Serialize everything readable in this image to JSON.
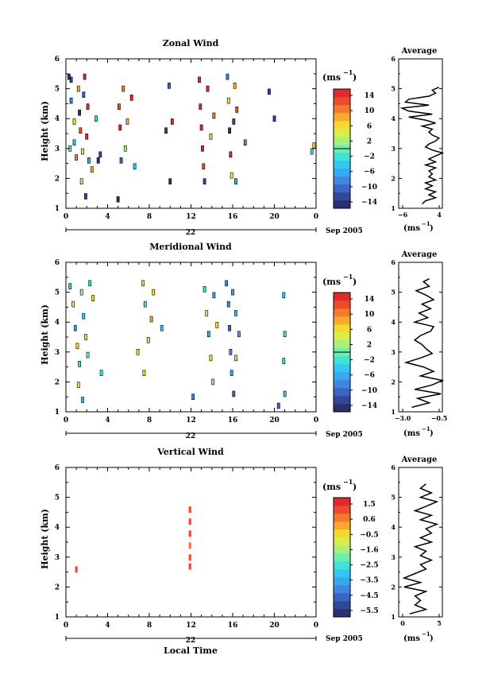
{
  "panels": [
    {
      "title": "Zonal Wind",
      "ylabel": "Height (km)",
      "cb_unit": "(ms",
      "cb_exp": "−1",
      "cb_labels": [
        "14",
        "10",
        "6",
        "2",
        "−2",
        "−6",
        "−10",
        "−14"
      ],
      "avg_title": "Average",
      "avg_xticks": [
        "−6",
        "4"
      ],
      "avg_unit": "(ms",
      "avg_exp": "−1",
      "date_label": "Sep 2005",
      "day_label": "22"
    },
    {
      "title": "Meridional Wind",
      "ylabel": "Height (km)",
      "cb_unit": "(ms",
      "cb_exp": "−1",
      "cb_labels": [
        "14",
        "10",
        "6",
        "2",
        "−2",
        "−6",
        "−10",
        "−14"
      ],
      "avg_title": "Average",
      "avg_xticks": [
        "−3.0",
        "−0.5"
      ],
      "avg_unit": "(ms",
      "avg_exp": "−1",
      "date_label": "Sep 2005",
      "day_label": "22"
    },
    {
      "title": "Vertical Wind",
      "ylabel": "Height (km)",
      "cb_unit": "(ms",
      "cb_exp": "−1",
      "cb_labels": [
        "1.5",
        "0.6",
        "−0.5",
        "−1.6",
        "−2.5",
        "−3.5",
        "−4.5",
        "−5.5"
      ],
      "avg_title": "Average",
      "avg_xticks": [
        "0",
        "5"
      ],
      "avg_unit": "(ms",
      "avg_exp": "−1",
      "date_label": "Sep 2005",
      "day_label": "22",
      "xlabel": "Local Time"
    }
  ],
  "colors": {
    "colormap": [
      "#2b2f6e",
      "#30489a",
      "#3a65c4",
      "#3f86e0",
      "#38a8ef",
      "#34c8f0",
      "#3fe2d8",
      "#6cefad",
      "#a8f07a",
      "#d8ee4c",
      "#f6d92e",
      "#f9aa2c",
      "#f57a2c",
      "#ee4a2e",
      "#e02b2b"
    ]
  },
  "chart_data": [
    {
      "type": "heatmap",
      "title": "Zonal Wind",
      "ylabel": "Height (km)",
      "x_ticks": [
        "0",
        "4",
        "8",
        "12",
        "16",
        "20",
        "0"
      ],
      "y_ticks": [
        "1",
        "2",
        "3",
        "4",
        "5",
        "6"
      ],
      "xlim": [
        0,
        24
      ],
      "ylim": [
        1,
        6
      ],
      "colorbar_range": [
        -16,
        16
      ],
      "cells": [
        [
          0.5,
          5.3,
          -12
        ],
        [
          0.5,
          4.6,
          -8
        ],
        [
          0.8,
          3.9,
          6
        ],
        [
          0.8,
          3.2,
          -4
        ],
        [
          1.0,
          2.7,
          10
        ],
        [
          1.2,
          5.0,
          8
        ],
        [
          1.3,
          4.2,
          -14
        ],
        [
          1.4,
          3.6,
          12
        ],
        [
          1.6,
          2.9,
          4
        ],
        [
          1.7,
          4.8,
          -10
        ],
        [
          1.8,
          5.4,
          14
        ],
        [
          2.0,
          3.4,
          14
        ],
        [
          2.1,
          4.4,
          16
        ],
        [
          2.2,
          2.6,
          -6
        ],
        [
          1.5,
          1.9,
          2
        ],
        [
          1.9,
          1.4,
          -12
        ],
        [
          2.5,
          2.3,
          8
        ],
        [
          2.9,
          4.0,
          -3
        ],
        [
          3.1,
          2.6,
          -14
        ],
        [
          3.3,
          2.8,
          -12
        ],
        [
          0.3,
          5.4,
          -14
        ],
        [
          0.4,
          3.0,
          0
        ],
        [
          5.1,
          4.4,
          12
        ],
        [
          5.2,
          3.7,
          14
        ],
        [
          5.3,
          2.6,
          -10
        ],
        [
          5.5,
          5.0,
          10
        ],
        [
          5.7,
          3.0,
          2
        ],
        [
          5.9,
          3.9,
          8
        ],
        [
          6.3,
          4.7,
          16
        ],
        [
          6.6,
          2.4,
          -4
        ],
        [
          5.0,
          1.3,
          -14
        ],
        [
          9.6,
          3.6,
          -12
        ],
        [
          9.9,
          5.1,
          -10
        ],
        [
          10.0,
          1.9,
          -14
        ],
        [
          10.2,
          3.9,
          14
        ],
        [
          12.8,
          5.3,
          16
        ],
        [
          12.9,
          4.4,
          16
        ],
        [
          13.0,
          3.7,
          14
        ],
        [
          13.1,
          3.0,
          16
        ],
        [
          13.2,
          2.4,
          12
        ],
        [
          13.3,
          1.9,
          -12
        ],
        [
          13.6,
          5.0,
          16
        ],
        [
          13.9,
          3.4,
          2
        ],
        [
          14.2,
          4.1,
          10
        ],
        [
          15.5,
          5.4,
          -8
        ],
        [
          15.6,
          4.6,
          6
        ],
        [
          15.7,
          3.6,
          -14
        ],
        [
          15.8,
          2.8,
          14
        ],
        [
          15.9,
          2.1,
          4
        ],
        [
          16.1,
          3.9,
          -12
        ],
        [
          16.2,
          5.1,
          8
        ],
        [
          16.3,
          1.9,
          -6
        ],
        [
          16.4,
          4.3,
          12
        ],
        [
          17.2,
          3.2,
          -8
        ],
        [
          19.5,
          4.9,
          -12
        ],
        [
          20.0,
          4.0,
          -12
        ],
        [
          23.6,
          2.9,
          -2
        ],
        [
          23.8,
          3.1,
          6
        ]
      ]
    },
    {
      "type": "heatmap",
      "title": "Meridional Wind",
      "ylabel": "Height (km)",
      "x_ticks": [
        "0",
        "4",
        "8",
        "12",
        "16",
        "20",
        "0"
      ],
      "y_ticks": [
        "1",
        "2",
        "3",
        "4",
        "5",
        "6"
      ],
      "xlim": [
        0,
        24
      ],
      "ylim": [
        1,
        6
      ],
      "colorbar_range": [
        -16,
        16
      ],
      "cells": [
        [
          0.4,
          5.2,
          -4
        ],
        [
          0.7,
          4.6,
          4
        ],
        [
          0.9,
          3.8,
          -6
        ],
        [
          1.1,
          3.2,
          6
        ],
        [
          1.3,
          2.6,
          -2
        ],
        [
          1.5,
          5.0,
          2
        ],
        [
          1.7,
          4.2,
          -4
        ],
        [
          1.9,
          3.5,
          4
        ],
        [
          2.1,
          2.9,
          0
        ],
        [
          2.3,
          5.3,
          -2
        ],
        [
          1.2,
          1.9,
          6
        ],
        [
          1.6,
          1.4,
          -4
        ],
        [
          2.6,
          4.8,
          6
        ],
        [
          3.4,
          2.3,
          -2
        ],
        [
          7.4,
          5.3,
          4
        ],
        [
          7.6,
          4.6,
          -2
        ],
        [
          7.9,
          3.4,
          2
        ],
        [
          8.2,
          4.1,
          8
        ],
        [
          8.4,
          5.0,
          6
        ],
        [
          7.5,
          2.3,
          6
        ],
        [
          9.2,
          3.8,
          -4
        ],
        [
          6.9,
          3.0,
          6
        ],
        [
          13.3,
          5.1,
          -2
        ],
        [
          13.5,
          4.3,
          4
        ],
        [
          13.7,
          3.6,
          -6
        ],
        [
          13.9,
          2.8,
          6
        ],
        [
          14.1,
          2.0,
          2
        ],
        [
          12.2,
          1.5,
          -8
        ],
        [
          14.2,
          4.9,
          -6
        ],
        [
          14.5,
          3.9,
          6
        ],
        [
          15.4,
          5.3,
          -8
        ],
        [
          15.6,
          4.6,
          -8
        ],
        [
          15.7,
          3.8,
          -10
        ],
        [
          15.8,
          3.0,
          -8
        ],
        [
          15.9,
          2.3,
          -6
        ],
        [
          16.1,
          1.6,
          -10
        ],
        [
          16.0,
          5.0,
          -6
        ],
        [
          16.3,
          4.3,
          -4
        ],
        [
          16.3,
          2.8,
          2
        ],
        [
          16.6,
          3.6,
          -6
        ],
        [
          20.9,
          4.9,
          -4
        ],
        [
          21.0,
          3.6,
          -2
        ],
        [
          20.9,
          2.7,
          -2
        ],
        [
          21.0,
          1.6,
          -4
        ],
        [
          20.4,
          1.2,
          -10
        ]
      ]
    },
    {
      "type": "heatmap",
      "title": "Vertical Wind",
      "xlabel": "Local Time",
      "ylabel": "Height (km)",
      "x_ticks": [
        "0",
        "4",
        "8",
        "12",
        "16",
        "20",
        "0"
      ],
      "y_ticks": [
        "1",
        "2",
        "3",
        "4",
        "5",
        "6"
      ],
      "xlim": [
        0,
        24
      ],
      "ylim": [
        1,
        6
      ],
      "colorbar_range": [
        -6,
        2
      ],
      "cells": [
        [
          1.0,
          2.6,
          1.2
        ],
        [
          11.9,
          4.6,
          1.4
        ],
        [
          11.9,
          4.2,
          1.0
        ],
        [
          11.9,
          3.8,
          1.2
        ],
        [
          11.9,
          3.4,
          0.8
        ],
        [
          11.9,
          3.0,
          1.0
        ],
        [
          11.9,
          2.7,
          1.4
        ]
      ]
    },
    {
      "type": "line",
      "title": "Average",
      "xlabel": "(ms-1)",
      "xlim": [
        -8,
        5
      ],
      "ylim": [
        1,
        6
      ],
      "x": [
        -1,
        0,
        3,
        1,
        3,
        0,
        2,
        0,
        3,
        1,
        2,
        1,
        3,
        0,
        3,
        1,
        3,
        5,
        2,
        0,
        1,
        3,
        4,
        2,
        1,
        2,
        -1,
        3,
        0,
        -5,
        2,
        -5,
        -7,
        1,
        -6,
        -5,
        1,
        3,
        2,
        4
      ],
      "y": [
        1.15,
        1.25,
        1.35,
        1.45,
        1.55,
        1.65,
        1.75,
        1.85,
        1.95,
        2.05,
        2.15,
        2.25,
        2.35,
        2.45,
        2.55,
        2.65,
        2.75,
        2.85,
        2.95,
        3.05,
        3.15,
        3.25,
        3.35,
        3.45,
        3.55,
        3.65,
        3.75,
        3.85,
        3.95,
        4.05,
        4.15,
        4.25,
        4.35,
        4.45,
        4.55,
        4.65,
        4.75,
        4.85,
        4.95,
        5.05
      ]
    },
    {
      "type": "line",
      "title": "Average",
      "xlabel": "(ms-1)",
      "xlim": [
        -3.5,
        -0.5
      ],
      "ylim": [
        1,
        6
      ],
      "x": [
        -2.6,
        -1.4,
        -2.2,
        -0.6,
        -2.4,
        -1.2,
        -0.5,
        -2.0,
        -1.1,
        -1.8,
        -3.0,
        -2.0,
        -1.2,
        -1.6,
        -1.9,
        -2.4,
        -2.0,
        -1.3,
        -1.1,
        -2.4,
        -1.5,
        -2.1,
        -1.3,
        -1.9,
        -1.1,
        -1.6,
        -2.3,
        -1.4,
        -1.8,
        -1.4
      ],
      "y": [
        1.15,
        1.3,
        1.45,
        1.6,
        1.75,
        1.9,
        2.05,
        2.2,
        2.35,
        2.5,
        2.65,
        2.8,
        2.95,
        3.1,
        3.25,
        3.4,
        3.55,
        3.7,
        3.85,
        4.0,
        4.15,
        4.3,
        4.45,
        4.6,
        4.75,
        4.9,
        5.05,
        5.2,
        5.35,
        5.45
      ]
    },
    {
      "type": "line",
      "title": "Average",
      "xlabel": "(ms-1)",
      "xlim": [
        -3,
        5
      ],
      "ylim": [
        1,
        6
      ],
      "x": [
        -1,
        2,
        0,
        1,
        0,
        2,
        -2,
        1,
        -2,
        0,
        2,
        1,
        3,
        1,
        2,
        0,
        3,
        1,
        3,
        2,
        4,
        1,
        3,
        0,
        2,
        4,
        1,
        3,
        1,
        2
      ],
      "y": [
        1.1,
        1.25,
        1.4,
        1.55,
        1.7,
        1.85,
        2.0,
        2.15,
        2.3,
        2.45,
        2.6,
        2.75,
        2.9,
        3.05,
        3.2,
        3.35,
        3.5,
        3.65,
        3.8,
        3.95,
        4.1,
        4.25,
        4.4,
        4.55,
        4.7,
        4.85,
        5.0,
        5.15,
        5.3,
        5.45
      ]
    }
  ]
}
